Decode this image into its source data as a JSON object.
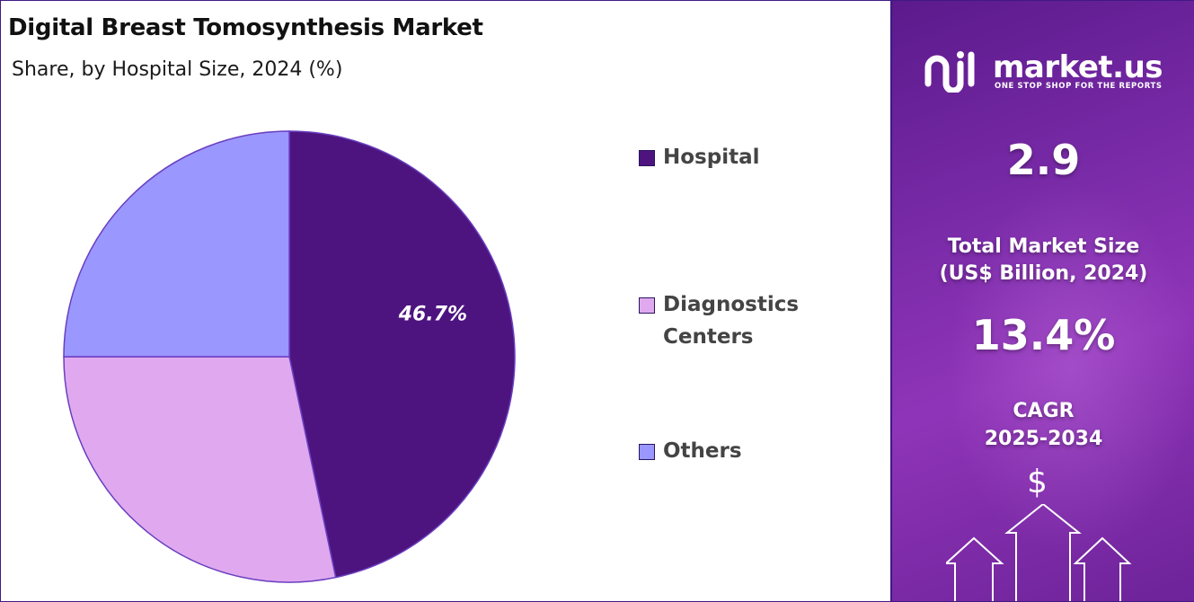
{
  "header": {
    "title": "Digital Breast Tomosynthesis Market",
    "subtitle": "Share, by Hospital Size, 2024 (%)"
  },
  "chart_data": {
    "type": "pie",
    "categories": [
      "Hospital",
      "Diagnostics Centers",
      "Others"
    ],
    "values": [
      46.7,
      28.3,
      25.0
    ],
    "data_labels": [
      "46.7%",
      "",
      ""
    ],
    "colors": [
      "#4d1480",
      "#e0a9ef",
      "#9a97ff"
    ],
    "legend_position": "right"
  },
  "legend": {
    "items": [
      {
        "label": "Hospital",
        "color": "#4d1480"
      },
      {
        "label": "Diagnostics Centers",
        "color": "#e0a9ef"
      },
      {
        "label": "Others",
        "color": "#9a97ff"
      }
    ]
  },
  "sidebar": {
    "brand": "market.us",
    "tagline": "ONE STOP SHOP FOR THE REPORTS",
    "market_size_value": "2.9",
    "market_size_label_1": "Total Market Size",
    "market_size_label_2": "(US$ Billion, 2024)",
    "cagr_value": "13.4%",
    "cagr_label_1": "CAGR",
    "cagr_label_2": "2025-2034",
    "currency_symbol": "$"
  }
}
